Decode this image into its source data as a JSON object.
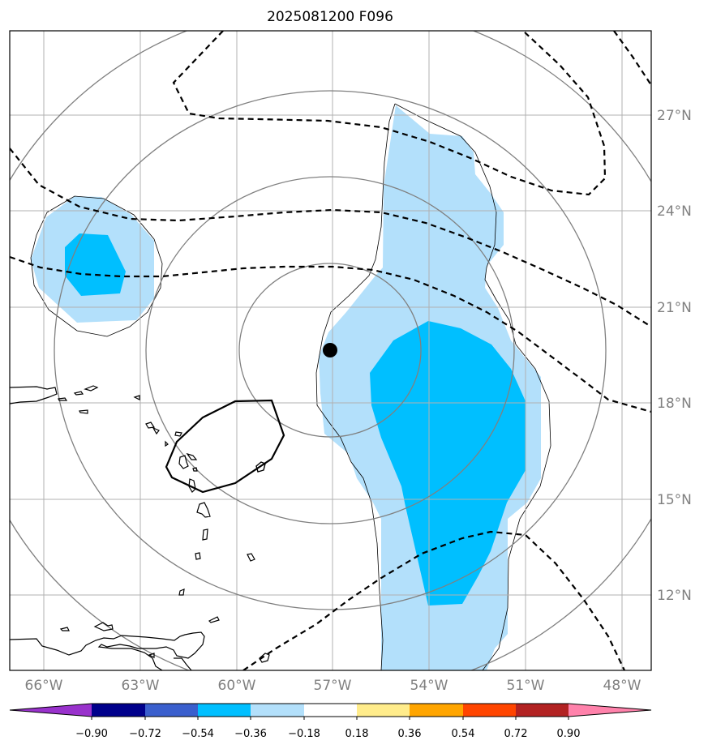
{
  "title": "2025081200 F096",
  "map": {
    "lon_labels": [
      "66°W",
      "63°W",
      "60°W",
      "57°W",
      "54°W",
      "51°W",
      "48°W"
    ],
    "lat_labels": [
      "27°N",
      "24°N",
      "21°N",
      "18°N",
      "15°N",
      "12°N"
    ],
    "colors": {
      "grid": "#b0b0b0",
      "range_rings": "#808080",
      "coast": "#000000",
      "light_blue": "#b3e0fb",
      "deep_sky_blue": "#00bfff",
      "storm_center": "#000000"
    }
  },
  "colorbar": {
    "tick_labels": [
      "−0.90",
      "−0.72",
      "−0.54",
      "−0.36",
      "−0.18",
      "0.18",
      "0.36",
      "0.54",
      "0.72",
      "0.90"
    ],
    "segment_colors": [
      "#9932cc",
      "#00008b",
      "#3a5fcd",
      "#00bfff",
      "#b3e0fb",
      "#ffffff",
      "#ffec8b",
      "#ffa500",
      "#ff4500",
      "#b22222",
      "#ff82ab"
    ]
  }
}
